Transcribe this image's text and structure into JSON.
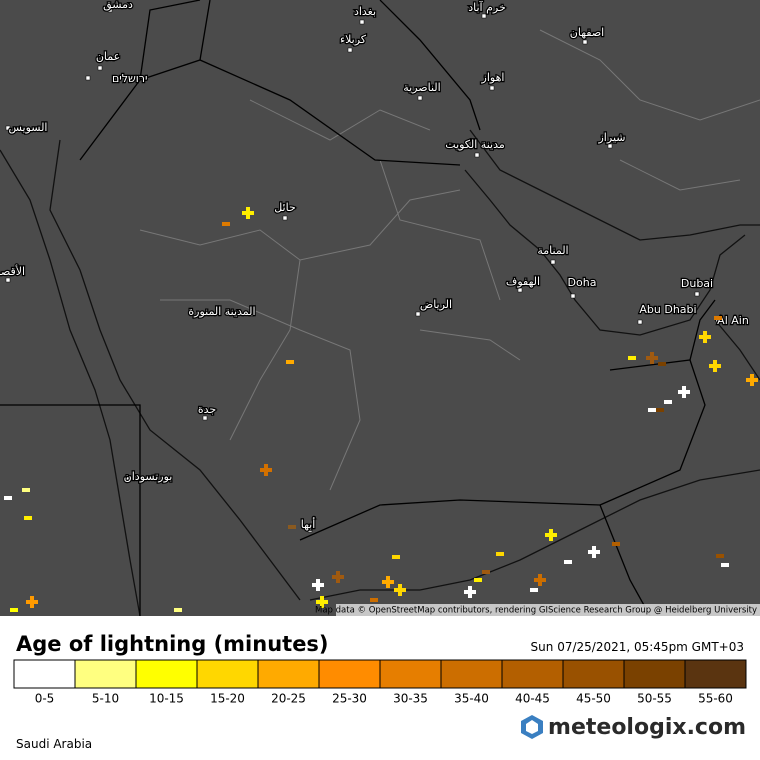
{
  "map": {
    "cities": [
      "دمشق",
      "بغداد",
      "خرم آباد",
      "كربلاء",
      "اصفهان",
      "عمان",
      "ירושלים",
      "اهواز",
      "الناصرية",
      "السويس",
      "شيراز",
      "مدينة الكويت",
      "حائل",
      "المنامة",
      "الأقصر",
      "الهفوف",
      "Doha",
      "Dubai",
      "الرياض",
      "Abu Dhabi",
      "Al Ain",
      "المدينة المنورة",
      "جدة",
      "بورتسودان",
      "أبها"
    ],
    "attribution": "Map data © OpenStreetMap contributors, rendering GIScience Research Group @ Heidelberg University"
  },
  "legend": {
    "title": "Age of lightning (minutes)",
    "timestamp": "Sun 07/25/2021, 05:45pm GMT+03",
    "bins": [
      {
        "label": "0-5",
        "color": "#ffffff"
      },
      {
        "label": "5-10",
        "color": "#ffff80"
      },
      {
        "label": "10-15",
        "color": "#ffff00"
      },
      {
        "label": "15-20",
        "color": "#ffd700"
      },
      {
        "label": "20-25",
        "color": "#ffaa00"
      },
      {
        "label": "25-30",
        "color": "#ff8c00"
      },
      {
        "label": "30-35",
        "color": "#e67e00"
      },
      {
        "label": "35-40",
        "color": "#cc6e00"
      },
      {
        "label": "40-45",
        "color": "#b35f00"
      },
      {
        "label": "45-50",
        "color": "#995100"
      },
      {
        "label": "50-55",
        "color": "#7a4100"
      },
      {
        "label": "55-60",
        "color": "#5a3410"
      }
    ]
  },
  "footer": {
    "region": "Saudi Arabia",
    "brand": "meteologix.com"
  }
}
